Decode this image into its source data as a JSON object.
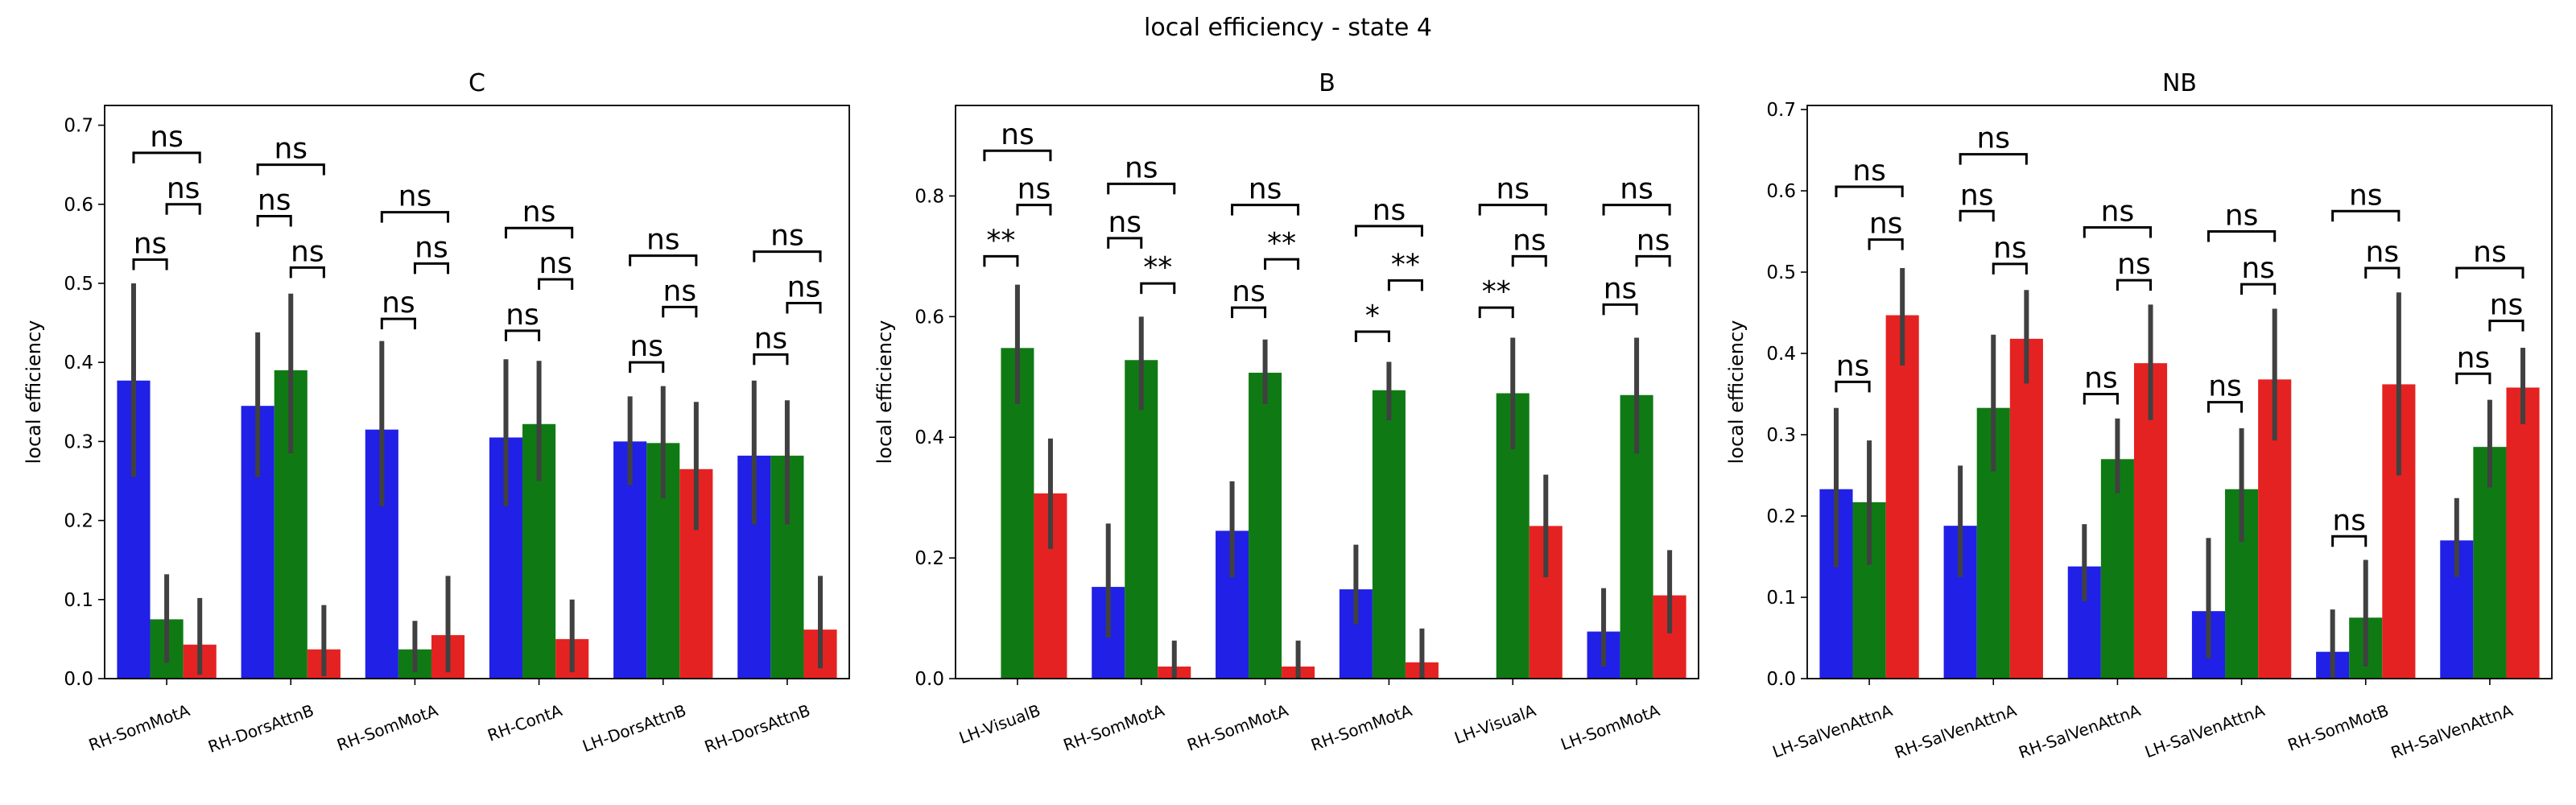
{
  "figure_title": "local efficiency - state 4",
  "colors": {
    "blue": "#2020e6",
    "green": "#0f7a14",
    "red": "#e52222",
    "errorbar": "#404040"
  },
  "chart_data": [
    {
      "type": "bar",
      "title": "C",
      "ylabel": "local efficiency",
      "ylim": [
        0,
        0.725
      ],
      "yticks": [
        "0.0",
        "0.1",
        "0.2",
        "0.3",
        "0.4",
        "0.5",
        "0.6",
        "0.7"
      ],
      "ytick_values": [
        0,
        0.1,
        0.2,
        0.3,
        0.4,
        0.5,
        0.6,
        0.7
      ],
      "categories": [
        "RH-SomMotA",
        "RH-DorsAttnB",
        "RH-SomMotA",
        "RH-ContA",
        "LH-DorsAttnB",
        "RH-DorsAttnB"
      ],
      "series": [
        {
          "color": "blue",
          "values": [
            0.377,
            0.345,
            0.315,
            0.305,
            0.3,
            0.282
          ],
          "err_low": [
            0.255,
            0.255,
            0.218,
            0.218,
            0.245,
            0.195
          ],
          "err_high": [
            0.5,
            0.438,
            0.427,
            0.404,
            0.357,
            0.377
          ]
        },
        {
          "color": "green",
          "values": [
            0.075,
            0.39,
            0.037,
            0.322,
            0.298,
            0.282
          ],
          "err_low": [
            0.02,
            0.285,
            0.008,
            0.25,
            0.228,
            0.195
          ],
          "err_high": [
            0.132,
            0.487,
            0.073,
            0.402,
            0.37,
            0.352
          ]
        },
        {
          "color": "red",
          "values": [
            0.043,
            0.037,
            0.055,
            0.05,
            0.265,
            0.062
          ],
          "err_low": [
            0.005,
            0.003,
            0.008,
            0.008,
            0.188,
            0.013
          ],
          "err_high": [
            0.102,
            0.093,
            0.13,
            0.1,
            0.35,
            0.13
          ]
        }
      ],
      "annotations": [
        {
          "group": 0,
          "a": 0,
          "b": 1,
          "y": 0.53,
          "text": "ns"
        },
        {
          "group": 0,
          "a": 1,
          "b": 2,
          "y": 0.6,
          "text": "ns"
        },
        {
          "group": 0,
          "a": 0,
          "b": 2,
          "y": 0.665,
          "text": "ns"
        },
        {
          "group": 1,
          "a": 0,
          "b": 1,
          "y": 0.585,
          "text": "ns"
        },
        {
          "group": 1,
          "a": 1,
          "b": 2,
          "y": 0.52,
          "text": "ns"
        },
        {
          "group": 1,
          "a": 0,
          "b": 2,
          "y": 0.65,
          "text": "ns"
        },
        {
          "group": 2,
          "a": 0,
          "b": 1,
          "y": 0.455,
          "text": "ns"
        },
        {
          "group": 2,
          "a": 1,
          "b": 2,
          "y": 0.525,
          "text": "ns"
        },
        {
          "group": 2,
          "a": 0,
          "b": 2,
          "y": 0.59,
          "text": "ns"
        },
        {
          "group": 3,
          "a": 0,
          "b": 1,
          "y": 0.44,
          "text": "ns"
        },
        {
          "group": 3,
          "a": 1,
          "b": 2,
          "y": 0.505,
          "text": "ns"
        },
        {
          "group": 3,
          "a": 0,
          "b": 2,
          "y": 0.57,
          "text": "ns"
        },
        {
          "group": 4,
          "a": 0,
          "b": 1,
          "y": 0.4,
          "text": "ns"
        },
        {
          "group": 4,
          "a": 1,
          "b": 2,
          "y": 0.47,
          "text": "ns"
        },
        {
          "group": 4,
          "a": 0,
          "b": 2,
          "y": 0.535,
          "text": "ns"
        },
        {
          "group": 5,
          "a": 0,
          "b": 1,
          "y": 0.41,
          "text": "ns"
        },
        {
          "group": 5,
          "a": 1,
          "b": 2,
          "y": 0.475,
          "text": "ns"
        },
        {
          "group": 5,
          "a": 0,
          "b": 2,
          "y": 0.54,
          "text": "ns"
        }
      ]
    },
    {
      "type": "bar",
      "title": "B",
      "ylabel": "local efficiency",
      "ylim": [
        0,
        0.95
      ],
      "yticks": [
        "0.0",
        "0.2",
        "0.4",
        "0.6",
        "0.8"
      ],
      "ytick_values": [
        0,
        0.2,
        0.4,
        0.6,
        0.8
      ],
      "categories": [
        "LH-VisualB",
        "RH-SomMotA",
        "RH-SomMotA",
        "RH-SomMotA",
        "LH-VisualA",
        "LH-SomMotA"
      ],
      "series": [
        {
          "color": "blue",
          "values": [
            0.0,
            0.152,
            0.245,
            0.148,
            0.0,
            0.078
          ],
          "err_low": [
            0.0,
            0.068,
            0.168,
            0.09,
            0.0,
            0.02
          ],
          "err_high": [
            0.0,
            0.257,
            0.327,
            0.222,
            0.0,
            0.15
          ]
        },
        {
          "color": "green",
          "values": [
            0.548,
            0.528,
            0.507,
            0.478,
            0.473,
            0.47
          ],
          "err_low": [
            0.455,
            0.445,
            0.455,
            0.428,
            0.38,
            0.373
          ],
          "err_high": [
            0.653,
            0.6,
            0.562,
            0.525,
            0.565,
            0.565
          ]
        },
        {
          "color": "red",
          "values": [
            0.307,
            0.02,
            0.02,
            0.027,
            0.253,
            0.138
          ],
          "err_low": [
            0.215,
            0.0,
            0.0,
            0.0,
            0.168,
            0.075
          ],
          "err_high": [
            0.398,
            0.063,
            0.063,
            0.083,
            0.338,
            0.213
          ]
        }
      ],
      "annotations": [
        {
          "group": 0,
          "a": 0,
          "b": 1,
          "y": 0.7,
          "text": "**"
        },
        {
          "group": 0,
          "a": 1,
          "b": 2,
          "y": 0.785,
          "text": "ns"
        },
        {
          "group": 0,
          "a": 0,
          "b": 2,
          "y": 0.875,
          "text": "ns"
        },
        {
          "group": 1,
          "a": 0,
          "b": 1,
          "y": 0.73,
          "text": "ns"
        },
        {
          "group": 1,
          "a": 1,
          "b": 2,
          "y": 0.655,
          "text": "**"
        },
        {
          "group": 1,
          "a": 0,
          "b": 2,
          "y": 0.82,
          "text": "ns"
        },
        {
          "group": 2,
          "a": 0,
          "b": 1,
          "y": 0.615,
          "text": "ns"
        },
        {
          "group": 2,
          "a": 1,
          "b": 2,
          "y": 0.695,
          "text": "**"
        },
        {
          "group": 2,
          "a": 0,
          "b": 2,
          "y": 0.785,
          "text": "ns"
        },
        {
          "group": 3,
          "a": 0,
          "b": 1,
          "y": 0.575,
          "text": "*"
        },
        {
          "group": 3,
          "a": 1,
          "b": 2,
          "y": 0.66,
          "text": "**"
        },
        {
          "group": 3,
          "a": 0,
          "b": 2,
          "y": 0.75,
          "text": "ns"
        },
        {
          "group": 4,
          "a": 0,
          "b": 1,
          "y": 0.615,
          "text": "**"
        },
        {
          "group": 4,
          "a": 1,
          "b": 2,
          "y": 0.7,
          "text": "ns"
        },
        {
          "group": 4,
          "a": 0,
          "b": 2,
          "y": 0.785,
          "text": "ns"
        },
        {
          "group": 5,
          "a": 0,
          "b": 1,
          "y": 0.62,
          "text": "ns"
        },
        {
          "group": 5,
          "a": 1,
          "b": 2,
          "y": 0.7,
          "text": "ns"
        },
        {
          "group": 5,
          "a": 0,
          "b": 2,
          "y": 0.785,
          "text": "ns"
        }
      ]
    },
    {
      "type": "bar",
      "title": "NB",
      "ylabel": "local efficiency",
      "ylim": [
        0,
        0.705
      ],
      "yticks": [
        "0.0",
        "0.1",
        "0.2",
        "0.3",
        "0.4",
        "0.5",
        "0.6",
        "0.7"
      ],
      "ytick_values": [
        0,
        0.1,
        0.2,
        0.3,
        0.4,
        0.5,
        0.6,
        0.7
      ],
      "categories": [
        "LH-SalVenAttnA",
        "RH-SalVenAttnA",
        "RH-SalVenAttnA",
        "LH-SalVenAttnA",
        "RH-SomMotB",
        "RH-SalVenAttnA"
      ],
      "series": [
        {
          "color": "blue",
          "values": [
            0.233,
            0.188,
            0.138,
            0.083,
            0.033,
            0.17
          ],
          "err_low": [
            0.137,
            0.125,
            0.095,
            0.025,
            0.0,
            0.125
          ],
          "err_high": [
            0.333,
            0.262,
            0.19,
            0.173,
            0.085,
            0.222
          ]
        },
        {
          "color": "green",
          "values": [
            0.217,
            0.333,
            0.27,
            0.233,
            0.075,
            0.285
          ],
          "err_low": [
            0.14,
            0.255,
            0.228,
            0.168,
            0.015,
            0.235
          ],
          "err_high": [
            0.293,
            0.423,
            0.32,
            0.308,
            0.146,
            0.343
          ]
        },
        {
          "color": "red",
          "values": [
            0.447,
            0.418,
            0.388,
            0.368,
            0.362,
            0.358
          ],
          "err_low": [
            0.385,
            0.363,
            0.318,
            0.293,
            0.25,
            0.313
          ],
          "err_high": [
            0.505,
            0.478,
            0.46,
            0.455,
            0.475,
            0.407
          ]
        }
      ],
      "annotations": [
        {
          "group": 0,
          "a": 0,
          "b": 1,
          "y": 0.365,
          "text": "ns"
        },
        {
          "group": 0,
          "a": 1,
          "b": 2,
          "y": 0.54,
          "text": "ns"
        },
        {
          "group": 0,
          "a": 0,
          "b": 2,
          "y": 0.605,
          "text": "ns"
        },
        {
          "group": 1,
          "a": 0,
          "b": 1,
          "y": 0.575,
          "text": "ns"
        },
        {
          "group": 1,
          "a": 1,
          "b": 2,
          "y": 0.51,
          "text": "ns"
        },
        {
          "group": 1,
          "a": 0,
          "b": 2,
          "y": 0.645,
          "text": "ns"
        },
        {
          "group": 2,
          "a": 0,
          "b": 1,
          "y": 0.35,
          "text": "ns"
        },
        {
          "group": 2,
          "a": 1,
          "b": 2,
          "y": 0.49,
          "text": "ns"
        },
        {
          "group": 2,
          "a": 0,
          "b": 2,
          "y": 0.555,
          "text": "ns"
        },
        {
          "group": 3,
          "a": 0,
          "b": 1,
          "y": 0.34,
          "text": "ns"
        },
        {
          "group": 3,
          "a": 1,
          "b": 2,
          "y": 0.485,
          "text": "ns"
        },
        {
          "group": 3,
          "a": 0,
          "b": 2,
          "y": 0.55,
          "text": "ns"
        },
        {
          "group": 4,
          "a": 0,
          "b": 1,
          "y": 0.175,
          "text": "ns"
        },
        {
          "group": 4,
          "a": 1,
          "b": 2,
          "y": 0.505,
          "text": "ns"
        },
        {
          "group": 4,
          "a": 0,
          "b": 2,
          "y": 0.575,
          "text": "ns"
        },
        {
          "group": 5,
          "a": 0,
          "b": 1,
          "y": 0.375,
          "text": "ns"
        },
        {
          "group": 5,
          "a": 1,
          "b": 2,
          "y": 0.44,
          "text": "ns"
        },
        {
          "group": 5,
          "a": 0,
          "b": 2,
          "y": 0.505,
          "text": "ns"
        }
      ]
    }
  ]
}
